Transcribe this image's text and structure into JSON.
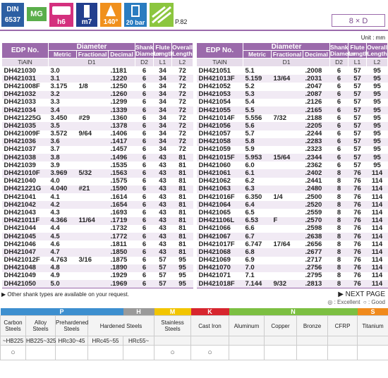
{
  "header": {
    "standard": [
      "DIN",
      "6537"
    ],
    "material": "MG",
    "shank_tolerance": "h6",
    "tolerance": "m7",
    "point_angle": "140°",
    "coolant": "20 bar",
    "page_ref": "P.82",
    "length_ratio": "8 × D"
  },
  "unit": "Unit : mm",
  "table_header": {
    "edp": "EDP No.",
    "diameter": "Diameter",
    "metric": "Metric",
    "fractional": "Fractional",
    "decimal": "Decimal",
    "shank": "Shank Diameter",
    "flute": "Flute Length",
    "overall": "Overall Length",
    "coating": "TiAlN",
    "d1": "D1",
    "d2": "D2",
    "l1": "L1",
    "l2": "L2"
  },
  "tables": [
    {
      "rows": [
        [
          "DH421030",
          "3.0",
          null,
          ".1181",
          "6",
          "34",
          "72"
        ],
        [
          "DH421031",
          "3.1",
          null,
          ".1220",
          "6",
          "34",
          "72"
        ],
        [
          "DH421008F",
          "3.175",
          "1/8",
          ".1250",
          "6",
          "34",
          "72"
        ],
        [
          "DH421032",
          "3.2",
          null,
          ".1260",
          "6",
          "34",
          "72"
        ],
        [
          "DH421033",
          "3.3",
          null,
          ".1299",
          "6",
          "34",
          "72"
        ],
        [
          "DH421034",
          "3.4",
          null,
          ".1339",
          "6",
          "34",
          "72"
        ],
        [
          "DH421225G",
          "3.450",
          "#29",
          ".1360",
          "6",
          "34",
          "72"
        ],
        [
          "DH421035",
          "3.5",
          null,
          ".1378",
          "6",
          "34",
          "72"
        ],
        [
          "DH421009F",
          "3.572",
          "9/64",
          ".1406",
          "6",
          "34",
          "72"
        ],
        [
          "DH421036",
          "3.6",
          null,
          ".1417",
          "6",
          "34",
          "72"
        ],
        [
          "DH421037",
          "3.7",
          null,
          ".1457",
          "6",
          "34",
          "72"
        ],
        [
          "DH421038",
          "3.8",
          null,
          ".1496",
          "6",
          "43",
          "81"
        ],
        [
          "DH421039",
          "3.9",
          null,
          ".1535",
          "6",
          "43",
          "81"
        ],
        [
          "DH421010F",
          "3.969",
          "5/32",
          ".1563",
          "6",
          "43",
          "81"
        ],
        [
          "DH421040",
          "4.0",
          null,
          ".1575",
          "6",
          "43",
          "81"
        ],
        [
          "DH421221G",
          "4.040",
          "#21",
          ".1590",
          "6",
          "43",
          "81"
        ],
        [
          "DH421041",
          "4.1",
          null,
          ".1614",
          "6",
          "43",
          "81"
        ],
        [
          "DH421042",
          "4.2",
          null,
          ".1654",
          "6",
          "43",
          "81"
        ],
        [
          "DH421043",
          "4.3",
          null,
          ".1693",
          "6",
          "43",
          "81"
        ],
        [
          "DH421011F",
          "4.366",
          "11/64",
          ".1719",
          "6",
          "43",
          "81"
        ],
        [
          "DH421044",
          "4.4",
          null,
          ".1732",
          "6",
          "43",
          "81"
        ],
        [
          "DH421045",
          "4.5",
          null,
          ".1772",
          "6",
          "43",
          "81"
        ],
        [
          "DH421046",
          "4.6",
          null,
          ".1811",
          "6",
          "43",
          "81"
        ],
        [
          "DH421047",
          "4.7",
          null,
          ".1850",
          "6",
          "43",
          "81"
        ],
        [
          "DH421012F",
          "4.763",
          "3/16",
          ".1875",
          "6",
          "57",
          "95"
        ],
        [
          "DH421048",
          "4.8",
          null,
          ".1890",
          "6",
          "57",
          "95"
        ],
        [
          "DH421049",
          "4.9",
          null,
          ".1929",
          "6",
          "57",
          "95"
        ],
        [
          "DH421050",
          "5.0",
          null,
          ".1969",
          "6",
          "57",
          "95"
        ]
      ]
    },
    {
      "rows": [
        [
          "DH421051",
          "5.1",
          null,
          ".2008",
          "6",
          "57",
          "95"
        ],
        [
          "DH421013F",
          "5.159",
          "13/64",
          ".2031",
          "6",
          "57",
          "95"
        ],
        [
          "DH421052",
          "5.2",
          null,
          ".2047",
          "6",
          "57",
          "95"
        ],
        [
          "DH421053",
          "5.3",
          null,
          ".2087",
          "6",
          "57",
          "95"
        ],
        [
          "DH421054",
          "5.4",
          null,
          ".2126",
          "6",
          "57",
          "95"
        ],
        [
          "DH421055",
          "5.5",
          null,
          ".2165",
          "6",
          "57",
          "95"
        ],
        [
          "DH421014F",
          "5.556",
          "7/32",
          ".2188",
          "6",
          "57",
          "95"
        ],
        [
          "DH421056",
          "5.6",
          null,
          ".2205",
          "6",
          "57",
          "95"
        ],
        [
          "DH421057",
          "5.7",
          null,
          ".2244",
          "6",
          "57",
          "95"
        ],
        [
          "DH421058",
          "5.8",
          null,
          ".2283",
          "6",
          "57",
          "95"
        ],
        [
          "DH421059",
          "5.9",
          null,
          ".2323",
          "6",
          "57",
          "95"
        ],
        [
          "DH421015F",
          "5.953",
          "15/64",
          ".2344",
          "6",
          "57",
          "95"
        ],
        [
          "DH421060",
          "6.0",
          null,
          ".2362",
          "6",
          "57",
          "95"
        ],
        [
          "DH421061",
          "6.1",
          null,
          ".2402",
          "8",
          "76",
          "114"
        ],
        [
          "DH421062",
          "6.2",
          null,
          ".2441",
          "8",
          "76",
          "114"
        ],
        [
          "DH421063",
          "6.3",
          null,
          ".2480",
          "8",
          "76",
          "114"
        ],
        [
          "DH421016F",
          "6.350",
          "1/4",
          ".2500",
          "8",
          "76",
          "114"
        ],
        [
          "DH421064",
          "6.4",
          null,
          ".2520",
          "8",
          "76",
          "114"
        ],
        [
          "DH421065",
          "6.5",
          null,
          ".2559",
          "8",
          "76",
          "114"
        ],
        [
          "DH421106L",
          "6.53",
          "F",
          ".2570",
          "8",
          "76",
          "114"
        ],
        [
          "DH421066",
          "6.6",
          null,
          ".2598",
          "8",
          "76",
          "114"
        ],
        [
          "DH421067",
          "6.7",
          null,
          ".2638",
          "8",
          "76",
          "114"
        ],
        [
          "DH421017F",
          "6.747",
          "17/64",
          ".2656",
          "8",
          "76",
          "114"
        ],
        [
          "DH421068",
          "6.8",
          null,
          ".2677",
          "8",
          "76",
          "114"
        ],
        [
          "DH421069",
          "6.9",
          null,
          ".2717",
          "8",
          "76",
          "114"
        ],
        [
          "DH421070",
          "7.0",
          null,
          ".2756",
          "8",
          "76",
          "114"
        ],
        [
          "DH421071",
          "7.1",
          null,
          ".2795",
          "8",
          "76",
          "114"
        ],
        [
          "DH421018F",
          "7.144",
          "9/32",
          ".2813",
          "8",
          "76",
          "114"
        ]
      ]
    }
  ],
  "footer": {
    "note": "▶ Other shank types are available on your request.",
    "next_page": "▶ NEXT PAGE",
    "legend": [
      "◎ : Excellent",
      "○ : Good"
    ]
  },
  "materials": {
    "groups": [
      {
        "code": "P",
        "color": "#3d8fcf"
      },
      {
        "code": "H",
        "color": "#9a9a9a"
      },
      {
        "code": "M",
        "color": "#f2c500"
      },
      {
        "code": "K",
        "color": "#d7262e"
      },
      {
        "code": "N",
        "color": "#7cbf42"
      },
      {
        "code": "S",
        "color": "#f08a1c"
      }
    ],
    "columns": [
      {
        "group": 0,
        "name": "Carbon Steels",
        "hardness": "~HB225",
        "rating": "○"
      },
      {
        "group": 0,
        "name": "Alloy Steels",
        "hardness": "HB225~325"
      },
      {
        "group": 0,
        "name": "Prehardened Steels",
        "hardness": "HRc30~45"
      },
      {
        "group": 0,
        "name": "Hardened Steels",
        "hardness": "HRc45~55"
      },
      {
        "group": 1,
        "hardness": "HRc55~"
      },
      {
        "group": 2,
        "name": "Stainless Steels",
        "rating": "○"
      },
      {
        "group": 3,
        "name": "Cast Iron",
        "rating": "○"
      },
      {
        "group": 4,
        "name": "Aluminum"
      },
      {
        "group": 4,
        "name": "Copper"
      },
      {
        "group": 4,
        "name": "Bronze"
      },
      {
        "group": 4,
        "name": "CFRP"
      },
      {
        "group": 5,
        "name": "Titanium"
      }
    ]
  }
}
